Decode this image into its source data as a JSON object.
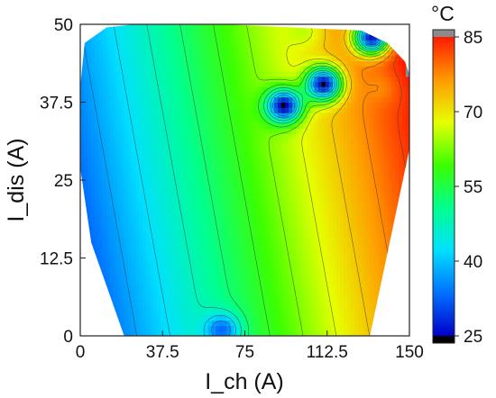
{
  "chart_data": {
    "type": "heatmap",
    "subtype": "filled-contour",
    "title": "",
    "xlabel": "I_ch (A)",
    "ylabel": "I_dis (A)",
    "xlim": [
      0,
      150
    ],
    "ylim": [
      0,
      50
    ],
    "x_ticks": [
      0,
      37.5,
      75,
      112.5,
      150
    ],
    "x_tick_labels": [
      "0",
      "37.5",
      "75",
      "112.5",
      "150"
    ],
    "y_ticks": [
      0,
      12.5,
      25,
      37.5,
      50
    ],
    "y_tick_labels": [
      "0",
      "12.5",
      "25",
      "37.5",
      "50"
    ],
    "colorbar": {
      "unit": "°C",
      "range": [
        25,
        85
      ],
      "ticks": [
        25,
        40,
        55,
        70,
        85
      ],
      "tick_labels": [
        "25",
        "40",
        "55",
        "70",
        "85"
      ],
      "under_color": "#000000",
      "over_color": "#8c8c8c",
      "colormap": [
        "#0000c8",
        "#0070ff",
        "#00e0ff",
        "#00ff90",
        "#3cff00",
        "#e6ff00",
        "#ff9a00",
        "#ff1a00"
      ]
    },
    "grid": false,
    "domain_polygon": [
      [
        2,
        47
      ],
      [
        12,
        49.5
      ],
      [
        25,
        50
      ],
      [
        65,
        50
      ],
      [
        128,
        49
      ],
      [
        140,
        47
      ],
      [
        148,
        44
      ],
      [
        150,
        42
      ],
      [
        150,
        30
      ],
      [
        132,
        0
      ],
      [
        20,
        0
      ],
      [
        5,
        15
      ],
      [
        0,
        27
      ],
      [
        0,
        40
      ]
    ],
    "field_features": [
      {
        "kind": "cold-spot",
        "x": 93,
        "y": 37,
        "value": 24
      },
      {
        "kind": "cold-spot",
        "x": 111,
        "y": 40.5,
        "value": 25
      },
      {
        "kind": "cold-spot",
        "x": 133,
        "y": 48,
        "value": 26
      },
      {
        "kind": "cold-spot",
        "x": 65,
        "y": 1,
        "value": 33
      },
      {
        "kind": "hot-spot",
        "x": 149,
        "y": 38,
        "value": 84
      },
      {
        "kind": "hot-spot",
        "x": 138,
        "y": 40,
        "value": 78
      },
      {
        "kind": "hot-spot",
        "x": 103,
        "y": 49,
        "value": 66
      }
    ],
    "gradient_model": {
      "x_weight": 0.33,
      "y_weight": 0.17,
      "offset": 29
    }
  }
}
